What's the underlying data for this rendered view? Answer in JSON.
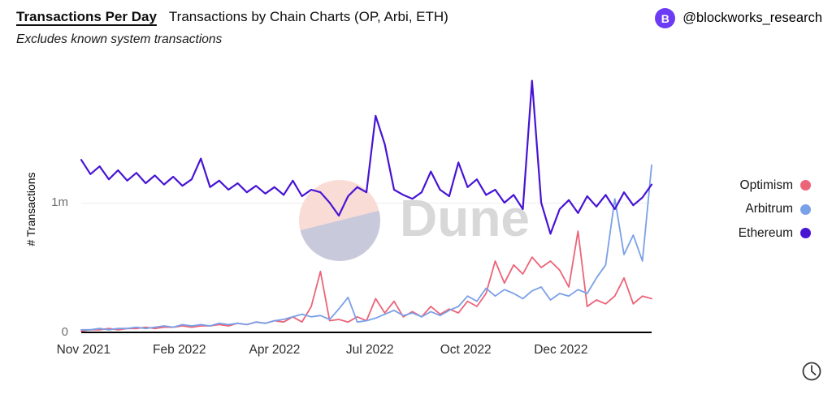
{
  "header": {
    "title_bold": "Transactions Per Day",
    "title_secondary": "Transactions by Chain Charts (OP, Arbi, ETH)",
    "subtitle": "Excludes known system transactions",
    "account": "@blockworks_research",
    "logo_letter": "B",
    "logo_color": "#6b3bf5"
  },
  "watermark": {
    "text": "Dune"
  },
  "icons": {
    "bottom_right": "clock-icon"
  },
  "chart_data": {
    "type": "line",
    "title": "Transactions Per Day — Transactions by Chain Charts (OP, Arbi, ETH)",
    "subtitle": "Excludes known system transactions",
    "xlabel": "",
    "ylabel": "# Transactions",
    "x_range": "Nov 2021 to Jan 2023",
    "unit": "millions of transactions per day",
    "note": "values estimated from pixels, ~weekly sampling",
    "ylim_millions": [
      0,
      1.97
    ],
    "grid": "single horizontal gridline at 1m",
    "legend_position": "right",
    "x_ticks": [
      {
        "label": "Nov 2021",
        "pos": 0.004
      },
      {
        "label": "Feb 2022",
        "pos": 0.172
      },
      {
        "label": "Apr 2022",
        "pos": 0.339
      },
      {
        "label": "Jul 2022",
        "pos": 0.506
      },
      {
        "label": "Oct 2022",
        "pos": 0.674
      },
      {
        "label": "Dec 2022",
        "pos": 0.841
      }
    ],
    "y_ticks": [
      {
        "label": "1m",
        "value": 1
      },
      {
        "label": "0",
        "value": 0
      }
    ],
    "series": [
      {
        "name": "Optimism",
        "color": "#ec6478",
        "values_millions": [
          0.01,
          0.02,
          0.02,
          0.03,
          0.02,
          0.03,
          0.03,
          0.04,
          0.03,
          0.04,
          0.04,
          0.05,
          0.04,
          0.05,
          0.05,
          0.06,
          0.05,
          0.07,
          0.06,
          0.08,
          0.07,
          0.09,
          0.08,
          0.12,
          0.08,
          0.2,
          0.47,
          0.09,
          0.1,
          0.08,
          0.12,
          0.09,
          0.26,
          0.15,
          0.24,
          0.12,
          0.16,
          0.12,
          0.2,
          0.14,
          0.18,
          0.15,
          0.24,
          0.2,
          0.3,
          0.55,
          0.38,
          0.52,
          0.45,
          0.58,
          0.5,
          0.55,
          0.48,
          0.35,
          0.78,
          0.2,
          0.25,
          0.22,
          0.28,
          0.42,
          0.22,
          0.28,
          0.26
        ]
      },
      {
        "name": "Arbitrum",
        "color": "#7aa0e8",
        "values_millions": [
          0.02,
          0.02,
          0.03,
          0.02,
          0.03,
          0.03,
          0.04,
          0.03,
          0.04,
          0.05,
          0.04,
          0.06,
          0.05,
          0.06,
          0.05,
          0.07,
          0.06,
          0.07,
          0.06,
          0.08,
          0.07,
          0.09,
          0.1,
          0.12,
          0.14,
          0.12,
          0.13,
          0.1,
          0.18,
          0.27,
          0.08,
          0.09,
          0.11,
          0.14,
          0.17,
          0.13,
          0.15,
          0.12,
          0.16,
          0.13,
          0.17,
          0.2,
          0.28,
          0.24,
          0.34,
          0.28,
          0.33,
          0.3,
          0.26,
          0.32,
          0.35,
          0.25,
          0.3,
          0.28,
          0.33,
          0.3,
          0.42,
          0.52,
          1.03,
          0.6,
          0.75,
          0.55,
          1.29
        ]
      },
      {
        "name": "Ethereum",
        "color": "#4714d4",
        "values_millions": [
          1.33,
          1.22,
          1.28,
          1.18,
          1.25,
          1.17,
          1.23,
          1.15,
          1.21,
          1.14,
          1.2,
          1.13,
          1.18,
          1.34,
          1.12,
          1.17,
          1.1,
          1.15,
          1.08,
          1.13,
          1.07,
          1.12,
          1.06,
          1.17,
          1.05,
          1.1,
          1.08,
          1.0,
          0.9,
          1.05,
          1.12,
          1.08,
          1.67,
          1.45,
          1.1,
          1.06,
          1.03,
          1.08,
          1.24,
          1.1,
          1.05,
          1.31,
          1.12,
          1.18,
          1.06,
          1.1,
          1.0,
          1.06,
          0.95,
          1.94,
          1.0,
          0.76,
          0.95,
          1.02,
          0.92,
          1.05,
          0.97,
          1.06,
          0.95,
          1.08,
          0.98,
          1.04,
          1.14
        ]
      }
    ]
  }
}
